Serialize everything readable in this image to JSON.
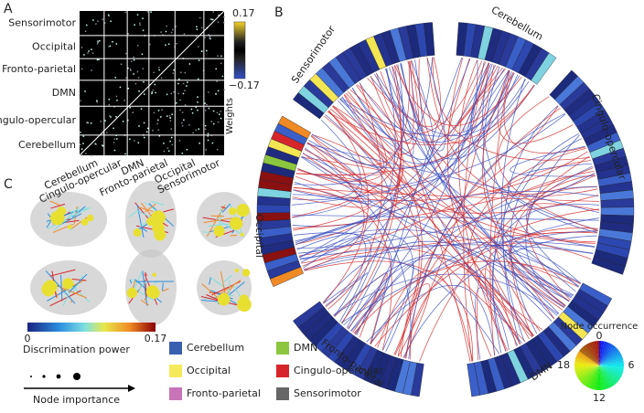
{
  "panel_a": {
    "label": "A",
    "row_labels": [
      "Sensorimotor",
      "Occipital",
      "Fronto-parietal",
      "DMN",
      "Cingulo-opercular",
      "Cerebellum"
    ],
    "col_labels": [
      "Cerebellum",
      "Cingulo-opercular",
      "DMN",
      "Fronto-parietal",
      "Occipital",
      "Sensorimotor"
    ],
    "colorbar": {
      "title": "Weights",
      "ticks": [
        0.17,
        {
          "value": -0.17,
          "label": "−0.17"
        }
      ]
    }
  },
  "panel_b": {
    "label": "B",
    "networks": [
      "Cerebellum",
      "Cingulo-opercular",
      "DMN",
      "Fronto-parietal",
      "Occipital",
      "Sensorimotor"
    ],
    "legend": {
      "title": "Node occurrence",
      "ticks": [
        0,
        6,
        12,
        18
      ]
    }
  },
  "panel_c": {
    "label": "C",
    "colorbar": {
      "title": "Discrimination power",
      "ticks": [
        0,
        0.17
      ]
    },
    "importance": "Node importance",
    "legend": [
      {
        "label": "Cerebellum",
        "color": "#3a5fb0"
      },
      {
        "label": "DMN",
        "color": "#8cc63f"
      },
      {
        "label": "Occipital",
        "color": "#f5ea5a"
      },
      {
        "label": "Cingulo-opercular",
        "color": "#d7262b"
      },
      {
        "label": "Fronto-parietal",
        "color": "#c774b8"
      },
      {
        "label": "Sensorimotor",
        "color": "#666666"
      }
    ]
  }
}
